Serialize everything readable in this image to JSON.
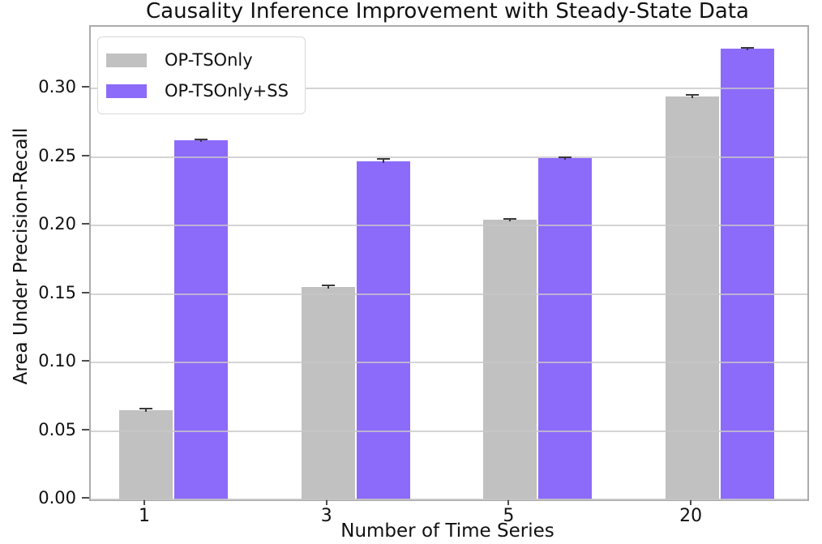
{
  "chart_data": {
    "type": "bar",
    "title": "Causality Inference Improvement with Steady-State Data",
    "xlabel": "Number of Time Series",
    "ylabel": "Area Under Precision-Recall",
    "categories": [
      "1",
      "3",
      "5",
      "20"
    ],
    "series": [
      {
        "name": "OP-TSOnly",
        "color": "#c1c1c1",
        "values": [
          0.065,
          0.155,
          0.204,
          0.294
        ],
        "errors": [
          0.0012,
          0.0015,
          0.001,
          0.001
        ]
      },
      {
        "name": "OP-TSOnly+SS",
        "color": "#8c6bfa",
        "values": [
          0.262,
          0.247,
          0.249,
          0.329
        ],
        "errors": [
          0.001,
          0.0015,
          0.001,
          0.0008
        ]
      }
    ],
    "ylim": [
      0,
      0.345
    ],
    "yticks": [
      0.0,
      0.05,
      0.1,
      0.15,
      0.2,
      0.25,
      0.3
    ],
    "ytick_format": "2-decimals",
    "grid": "horizontal, drawn above bars",
    "legend_position": "upper-left",
    "error_bar_color": "#3a3a3a"
  }
}
